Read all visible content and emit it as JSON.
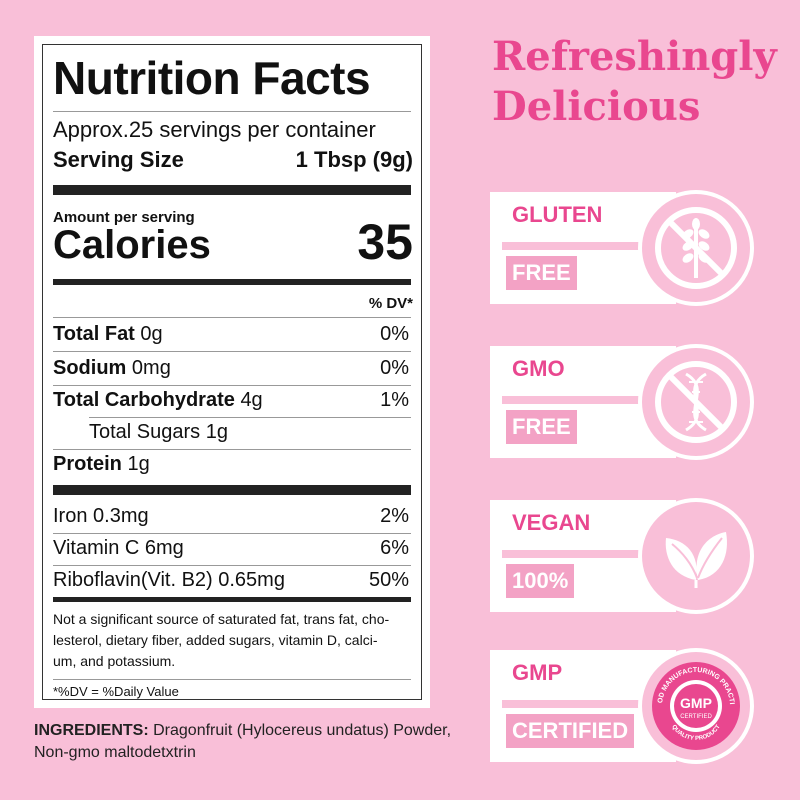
{
  "nutrition": {
    "title": "Nutrition Facts",
    "servings": "Approx.25 servings per container",
    "serving_size_label": "Serving Size",
    "serving_size_value": "1 Tbsp (9g)",
    "amount_label": "Amount per serving",
    "calories_label": "Calories",
    "calories_value": "35",
    "dv_header": "% DV*",
    "rows": [
      {
        "name": "Total Fat",
        "amount": "0g",
        "dv": "0%"
      },
      {
        "name": "Sodium",
        "amount": "0mg",
        "dv": "0%"
      },
      {
        "name": "Total Carbohydrate",
        "amount": "4g",
        "dv": "1%"
      },
      {
        "name": "Total Sugars 1g",
        "amount": "",
        "dv": ""
      },
      {
        "name": "Protein",
        "amount": "1g",
        "dv": ""
      }
    ],
    "vitamins": [
      {
        "name": "Iron 0.3mg",
        "dv": "2%"
      },
      {
        "name": "Vitamin C 6mg",
        "dv": "6%"
      },
      {
        "name": "Riboflavin(Vit. B2) 0.65mg",
        "dv": "50%"
      }
    ],
    "footnote_line1": "Not a significant source of saturated fat, trans fat, cho-",
    "footnote_line2": "lesterol, dietary fiber, added sugars, vitamin D, calci-",
    "footnote_line3": "um, and potassium.",
    "dv_note": "*%DV = %Daily Value"
  },
  "ingredients": {
    "label": "INGREDIENTS:",
    "text_line1": "Dragonfruit (Hylocereus undatus) Powder,",
    "text_line2": "Non-gmo maltodetxtrin"
  },
  "heading": {
    "line1": "Refreshingly",
    "line2": "Delicious"
  },
  "badges": [
    {
      "top": "GLUTEN",
      "bottom": "FREE",
      "icon": "wheat-crossed-icon"
    },
    {
      "top": "GMO",
      "bottom": "FREE",
      "icon": "dna-crossed-icon"
    },
    {
      "top": "VEGAN",
      "bottom": "100%",
      "icon": "leaves-icon"
    },
    {
      "top": "GMP",
      "bottom": "CERTIFIED",
      "icon": "gmp-seal-icon"
    }
  ],
  "gmp_seal": {
    "center": "GMP",
    "sub": "CERTIFIED",
    "ring_top": "GOOD MANUFACTURING PRACTICE",
    "ring_bottom": "QUALITY PRODUCT"
  },
  "colors": {
    "background": "#f9bfd8",
    "accent": "#e9478f",
    "badge_band": "#f3a2c5"
  }
}
